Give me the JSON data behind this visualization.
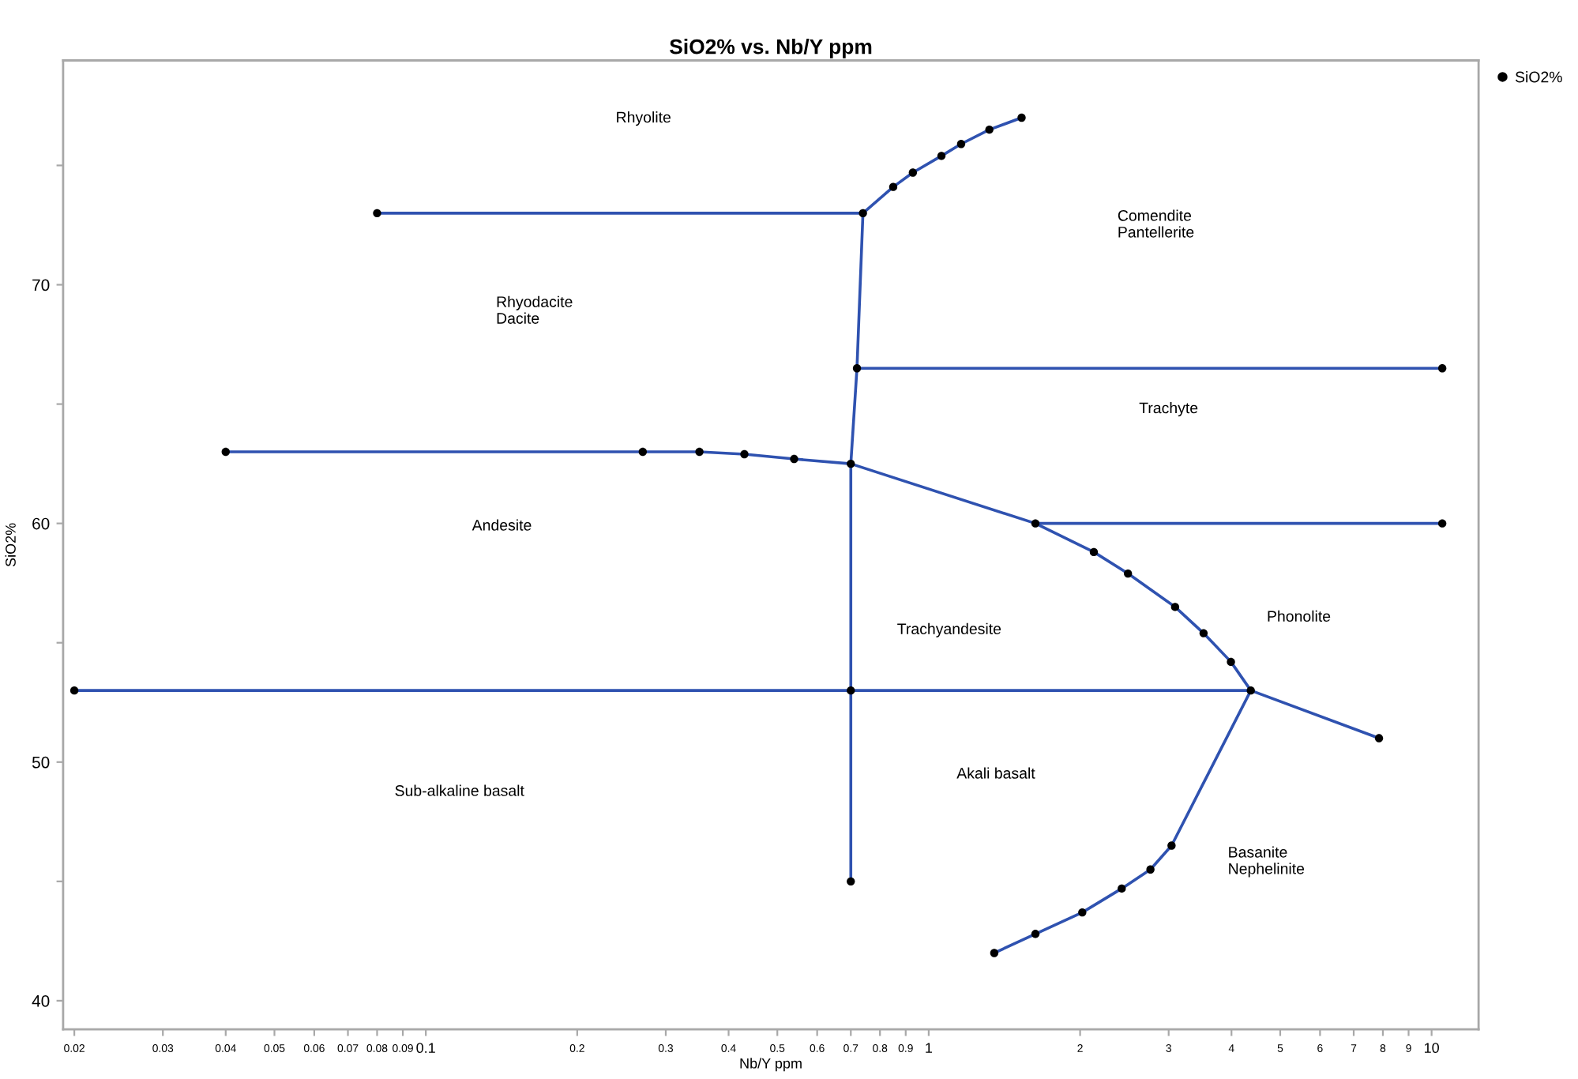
{
  "chart_data": {
    "type": "line",
    "title": "SiO2% vs. Nb/Y ppm",
    "xlabel": "Nb/Y ppm",
    "ylabel": "SiO2%",
    "log": "x",
    "xlim": [
      0.019,
      12.4
    ],
    "ylim": [
      38.8,
      79.4
    ],
    "xticks": [
      0.02,
      0.03,
      0.04,
      0.05,
      0.06,
      0.07,
      0.08,
      0.09,
      0.1,
      0.2,
      0.3,
      0.4,
      0.5,
      0.6,
      0.7,
      0.8,
      0.9,
      1,
      2,
      3,
      4,
      5,
      6,
      7,
      8,
      9,
      10
    ],
    "yticks": [
      40,
      {
        "value": 45,
        "label": null
      },
      50,
      {
        "value": 55,
        "label": null
      },
      60,
      {
        "value": 65,
        "label": null
      },
      70,
      {
        "value": 75,
        "label": null
      }
    ],
    "legend": "right",
    "series": [
      {
        "color": "#2f52b0",
        "x": [
          0.08,
          0.74,
          0.85,
          0.93,
          1.06,
          1.16,
          1.32,
          1.53
        ],
        "values": [
          73,
          73,
          74.1,
          74.7,
          75.4,
          75.9,
          76.5,
          77.0
        ]
      },
      {
        "color": "#2f52b0",
        "x": [
          0.74,
          0.72,
          0.7,
          0.7,
          0.7
        ],
        "values": [
          73,
          66.5,
          62.5,
          53,
          45
        ]
      },
      {
        "color": "#2f52b0",
        "x": [
          0.72,
          10.5
        ],
        "values": [
          66.5,
          66.5
        ]
      },
      {
        "color": "#2f52b0",
        "x": [
          0.04,
          0.27,
          0.35,
          0.43,
          0.54,
          0.7,
          1.63,
          2.13,
          2.49,
          3.09,
          3.52,
          3.99,
          4.37,
          7.86
        ],
        "values": [
          63,
          63,
          63,
          62.9,
          62.7,
          62.5,
          60,
          58.8,
          57.9,
          56.5,
          55.4,
          54.2,
          53,
          51
        ]
      },
      {
        "color": "#2f52b0",
        "x": [
          1.63,
          10.5
        ],
        "values": [
          60,
          60
        ]
      },
      {
        "color": "#2f52b0",
        "x": [
          0.02,
          0.7,
          4.37
        ],
        "values": [
          53,
          53,
          53
        ]
      },
      {
        "color": "#2f52b0",
        "x": [
          4.37,
          3.04,
          2.76,
          2.42,
          2.02,
          1.63,
          1.35
        ],
        "values": [
          53,
          46.5,
          45.5,
          44.7,
          43.7,
          42.8,
          42
        ]
      },
      {
        "type": "scatter",
        "name": "SiO2%",
        "color": "#000000",
        "marker": "circle",
        "x": [
          0.08,
          0.74,
          0.85,
          0.93,
          1.06,
          1.16,
          1.32,
          1.53,
          0.72,
          10.5,
          0.04,
          0.27,
          0.35,
          0.43,
          0.54,
          0.7,
          1.63,
          10.5,
          2.13,
          2.49,
          3.09,
          3.52,
          3.99,
          4.37,
          7.86,
          0.02,
          0.7,
          0.7,
          3.04,
          2.76,
          2.42,
          2.02,
          1.63,
          1.35
        ],
        "values": [
          73,
          73,
          74.1,
          74.7,
          75.4,
          75.9,
          76.5,
          77.0,
          66.5,
          66.5,
          63,
          63,
          63,
          62.9,
          62.7,
          62.5,
          60,
          60,
          58.8,
          57.9,
          56.5,
          55.4,
          54.2,
          53,
          51,
          53,
          53,
          45,
          46.5,
          45.5,
          44.7,
          43.7,
          42.8,
          42
        ]
      }
    ],
    "annotations": [
      "Rhyolite",
      "Rhyodacite\nDacite",
      "Comendite\nPantellerite",
      "Trachyte",
      "Andesite",
      "Trachyandesite",
      "Phonolite",
      "Akali basalt",
      "Sub-alkaline basalt",
      "Basanite\nNephelinite"
    ]
  }
}
